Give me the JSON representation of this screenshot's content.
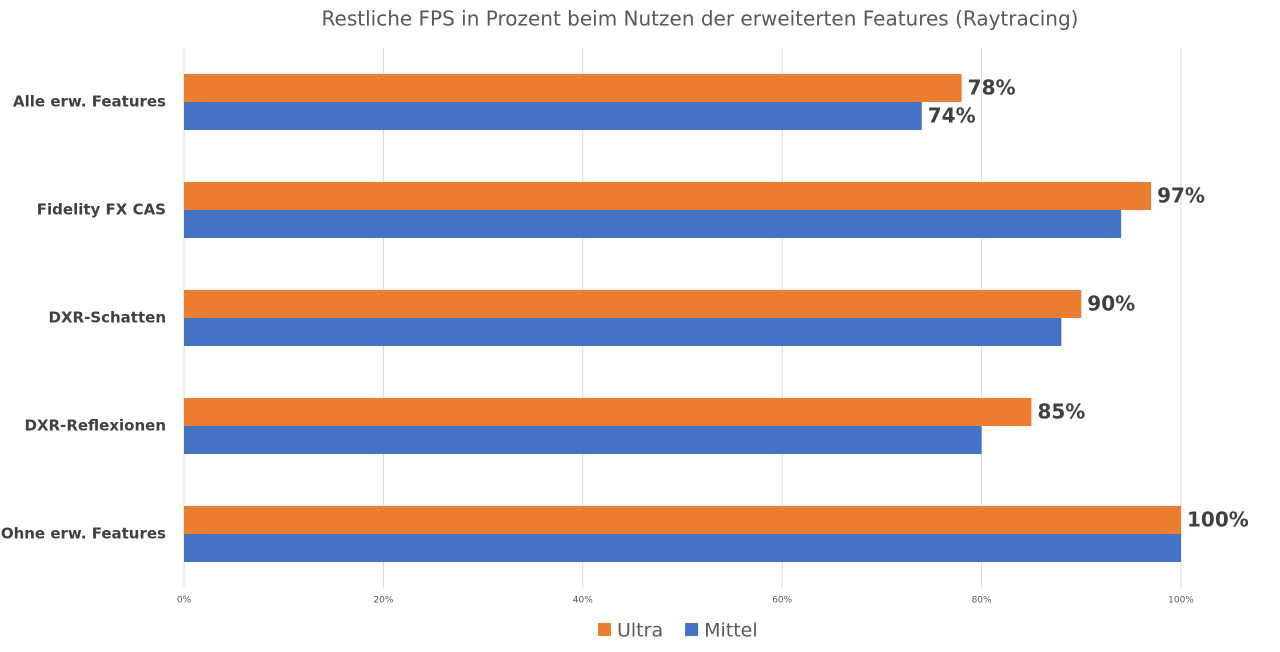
{
  "chart_data": {
    "type": "hbar",
    "title": "Restliche FPS in Prozent beim Nutzen der erweiterten Features (Raytracing)",
    "categories": [
      "Alle erw. Features",
      "Fidelity FX CAS",
      "DXR-Schatten",
      "DXR-Reflexionen",
      "Ohne erw. Features"
    ],
    "series": [
      {
        "name": "Ultra",
        "color": "#ed7d31",
        "values": [
          78,
          97,
          90,
          85,
          100
        ],
        "value_labels": [
          "78%",
          "97%",
          "90%",
          "85%",
          "100%"
        ]
      },
      {
        "name": "Mittel",
        "color": "#4472c4",
        "values": [
          74,
          94,
          88,
          80,
          100
        ],
        "value_labels": [
          "74%",
          null,
          null,
          null,
          null
        ]
      }
    ],
    "xlim": [
      0,
      100
    ],
    "xticks": [
      {
        "value": 0,
        "label": "0%"
      },
      {
        "value": 20,
        "label": "20%"
      },
      {
        "value": 40,
        "label": "40%"
      },
      {
        "value": 60,
        "label": "60%"
      },
      {
        "value": 80,
        "label": "80%"
      },
      {
        "value": 100,
        "label": "100%"
      }
    ],
    "grid": true,
    "legend": "bottom"
  }
}
